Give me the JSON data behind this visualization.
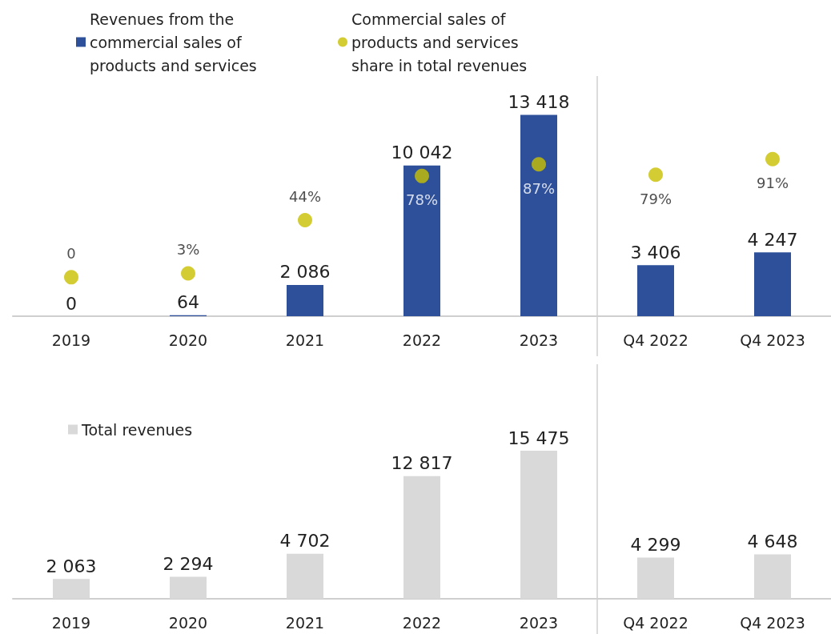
{
  "chart_data": [
    {
      "type": "bar",
      "categories": [
        "2019",
        "2020",
        "2021",
        "2022",
        "2023",
        "Q4 2022",
        "Q4 2023"
      ],
      "ylim": [
        0,
        16000
      ],
      "y2lim": [
        -30,
        155
      ],
      "tick_labels": "x",
      "legend": "top left",
      "marker": "circle",
      "series": [
        {
          "name": "Revenues from the commercial sales of products and services",
          "color": "#2e509b",
          "values": [
            0,
            64,
            2086,
            10042,
            13418,
            3406,
            4247
          ],
          "value_labels": [
            "0",
            "64",
            "2 086",
            "10 042",
            "13 418",
            "3 406",
            "4 247"
          ]
        },
        {
          "type": "scatter",
          "axis": "y2",
          "name": "Commercial sales of products and services share in total revenues",
          "color": "#c8c000",
          "values": [
            0,
            3,
            44,
            78,
            87,
            79,
            91
          ],
          "value_labels": [
            "0",
            "3%",
            "44%",
            "78%",
            "87%",
            "79%",
            "91%"
          ]
        }
      ]
    },
    {
      "type": "bar",
      "categories": [
        "2019",
        "2020",
        "2021",
        "2022",
        "2023",
        "Q4 2022",
        "Q4 2023"
      ],
      "tick_labels": "x",
      "legend": "top left",
      "series": [
        {
          "name": "Total revenues",
          "color": "#d9d9d9",
          "values": [
            2063,
            2294,
            4702,
            12817,
            15475,
            4299,
            4648
          ],
          "value_labels": [
            "2 063",
            "2 294",
            "4 702",
            "12 817",
            "15 475",
            "4 299",
            "4 648"
          ]
        }
      ]
    }
  ]
}
